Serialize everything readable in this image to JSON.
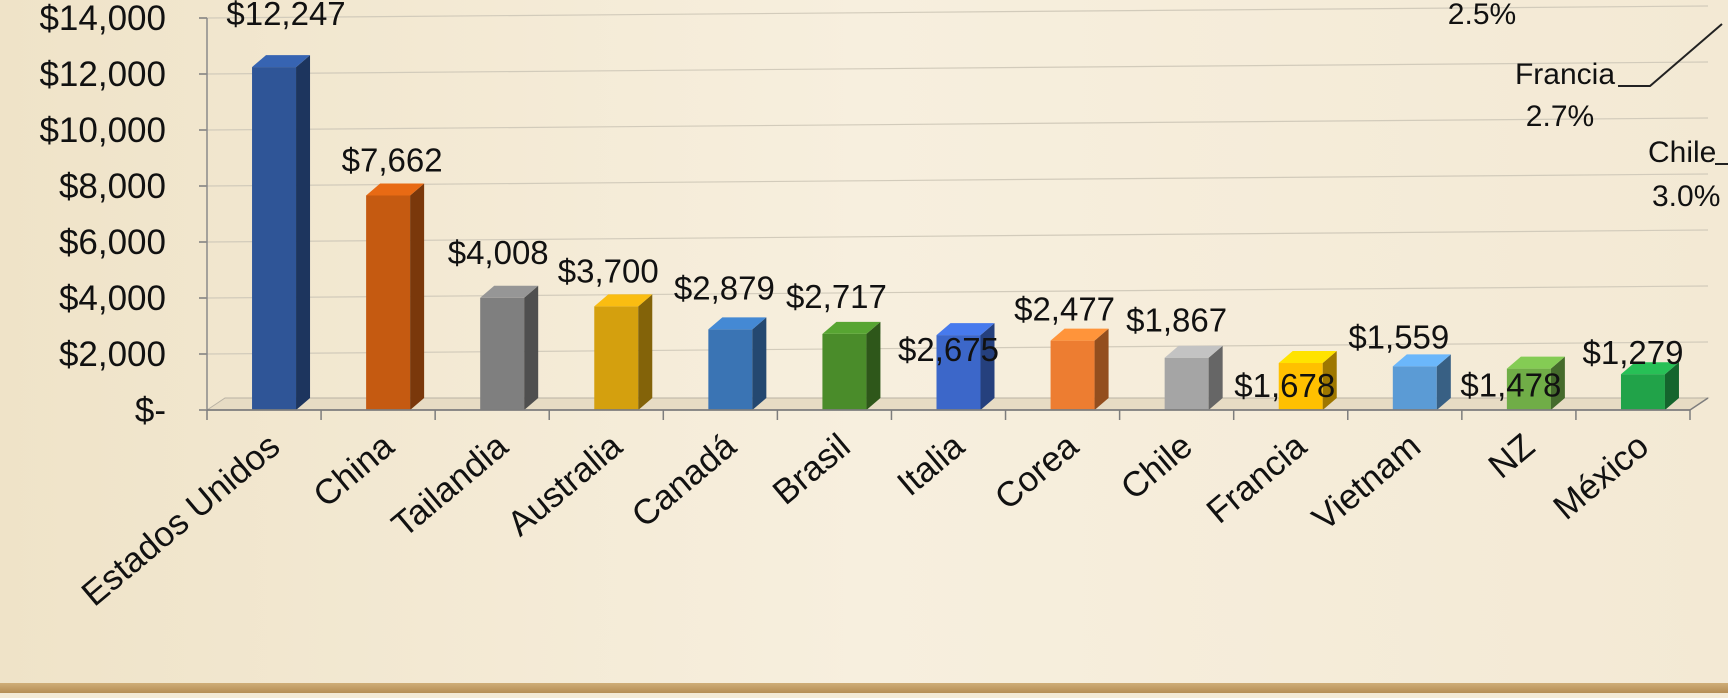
{
  "chart_data": [
    {
      "type": "bar",
      "title": "",
      "xlabel": "",
      "ylabel": "",
      "ylim": [
        0,
        14000
      ],
      "grid": true,
      "y_ticks": [
        "$-",
        "$2,000",
        "$4,000",
        "$6,000",
        "$8,000",
        "$10,000",
        "$12,000",
        "$14,000"
      ],
      "categories": [
        "Estados Unidos",
        "China",
        "Tailandia",
        "Australia",
        "Canadá",
        "Brasil",
        "Italia",
        "Corea",
        "Chile",
        "Francia",
        "Vietnam",
        "NZ",
        "México"
      ],
      "values": [
        12247,
        7662,
        4008,
        3700,
        2879,
        2717,
        2675,
        2477,
        1867,
        1678,
        1559,
        1478,
        1279
      ],
      "data_labels": [
        "$12,247",
        "$7,662",
        "$4,008",
        "$3,700",
        "$2,879",
        "$2,717",
        "$2,675",
        "$2,477",
        "$1,867",
        "$1,678",
        "$1,559",
        "$1,478",
        "$1,279"
      ],
      "colors": [
        "#2f5597",
        "#c55a11",
        "#7f7f7f",
        "#d4a00e",
        "#3a74b4",
        "#4a8c2a",
        "#3c67c9",
        "#ed7d31",
        "#a5a5a5",
        "#ffc000",
        "#5b9bd5",
        "#70ad47",
        "#21a349"
      ]
    },
    {
      "type": "pie",
      "partial": true,
      "labels": [
        {
          "name": "",
          "pct": "2.5%"
        },
        {
          "name": "Francia",
          "pct": "2.7%"
        },
        {
          "name": "Chile",
          "pct": "3.0%"
        }
      ],
      "values": [
        2.5,
        2.7,
        3.0
      ]
    }
  ]
}
